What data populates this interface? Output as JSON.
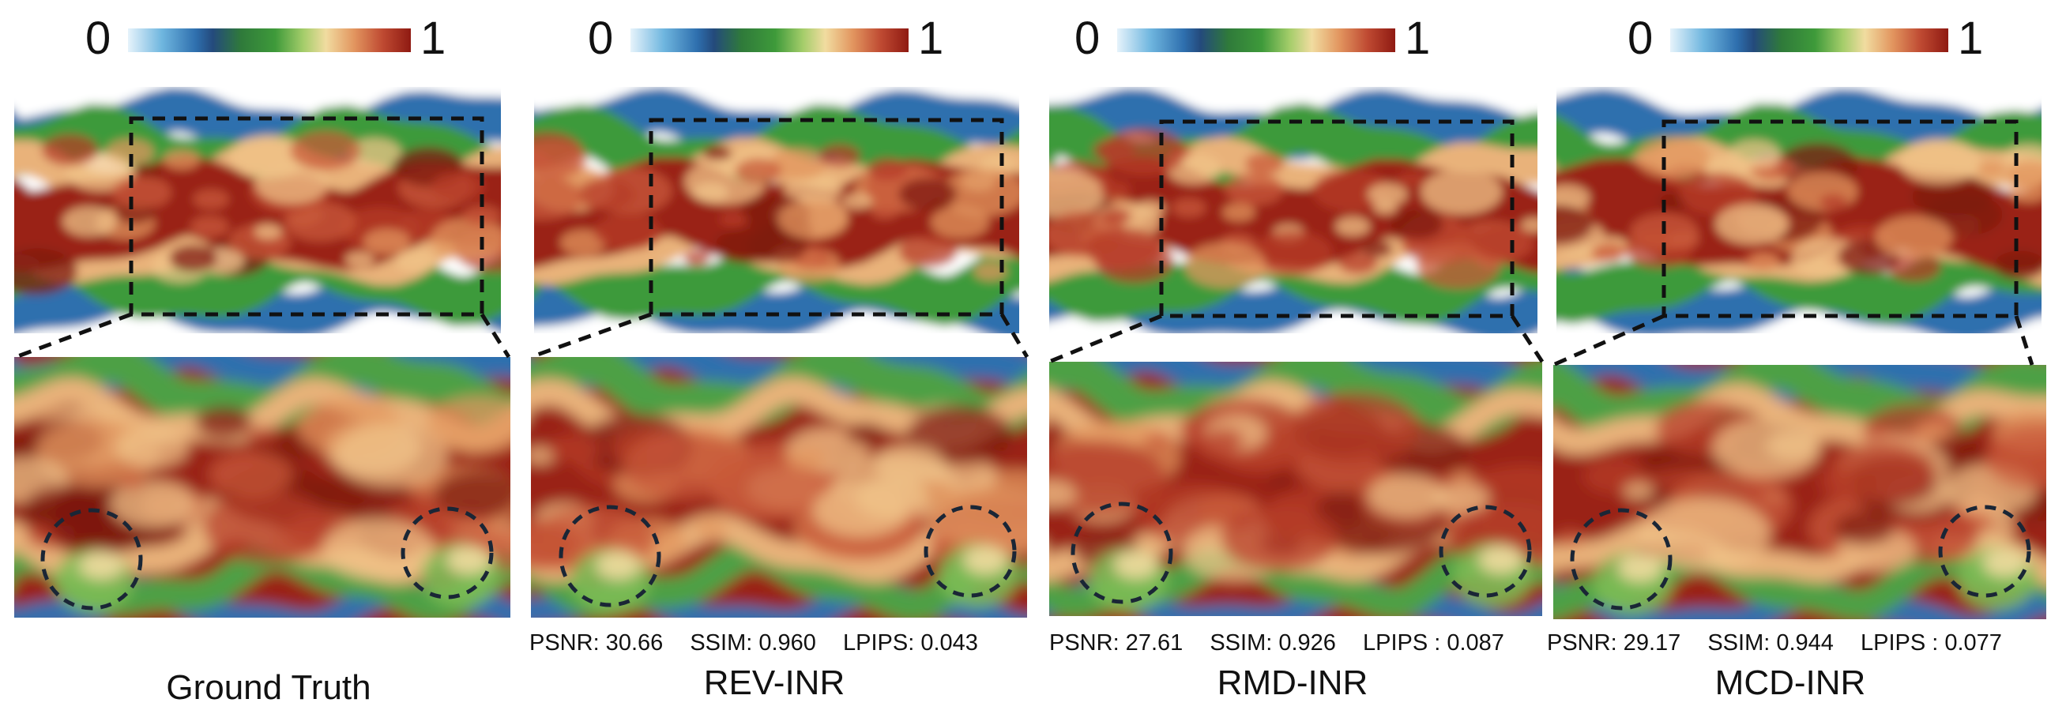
{
  "colorbar": {
    "min_label": "0",
    "max_label": "1",
    "stops": [
      "#e6f3fb",
      "#6fb6df",
      "#2e6fae",
      "#244a7c",
      "#2f7a3a",
      "#3e9a3a",
      "#a4cd6a",
      "#f1dca0",
      "#e2955f",
      "#bf4a32",
      "#8f1a12"
    ]
  },
  "panels": [
    {
      "caption": "Ground Truth",
      "metrics": null
    },
    {
      "caption": "REV-INR",
      "metrics": {
        "psnr": "PSNR: 30.66",
        "ssim": "SSIM: 0.960",
        "lpips": "LPIPS: 0.043"
      }
    },
    {
      "caption": "RMD-INR",
      "metrics": {
        "psnr": "PSNR: 27.61",
        "ssim": "SSIM: 0.926",
        "lpips": "LPIPS : 0.087"
      }
    },
    {
      "caption": "MCD-INR",
      "metrics": {
        "psnr": "PSNR: 29.17",
        "ssim": "SSIM: 0.944",
        "lpips": "LPIPS : 0.077"
      }
    }
  ]
}
